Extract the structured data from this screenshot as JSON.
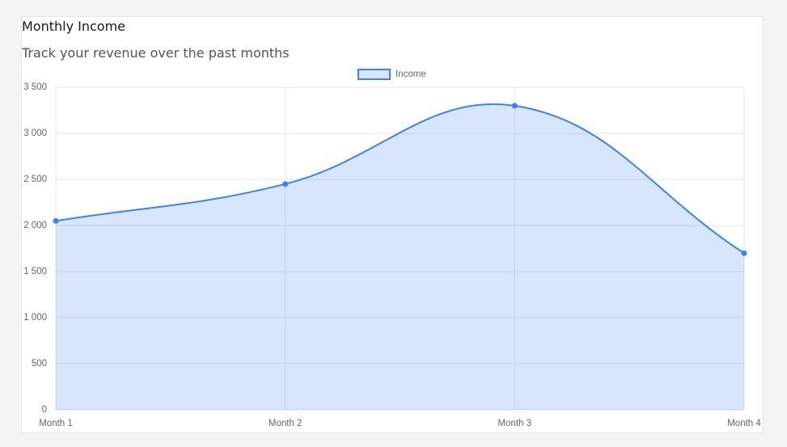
{
  "chart_data": {
    "type": "line",
    "title": "Monthly Income",
    "subtitle": "Track your revenue over the past months",
    "categories": [
      "Month 1",
      "Month 2",
      "Month 3",
      "Month 4"
    ],
    "series": [
      {
        "name": "Income",
        "color": "#3b82f6",
        "values": [
          2050,
          2450,
          3300,
          1700
        ]
      }
    ],
    "ylim": [
      0,
      3500
    ],
    "yticks": [
      0,
      500,
      {
        "value": 1000,
        "label": "1 000"
      },
      {
        "value": 1500,
        "label": "1 500"
      },
      {
        "value": 2000,
        "label": "2 000"
      },
      {
        "value": 2500,
        "label": "2 500"
      },
      {
        "value": 3000,
        "label": "3 000"
      },
      {
        "value": 3500,
        "label": "3 500"
      }
    ],
    "grid": true,
    "fill": true,
    "legend": "top"
  }
}
